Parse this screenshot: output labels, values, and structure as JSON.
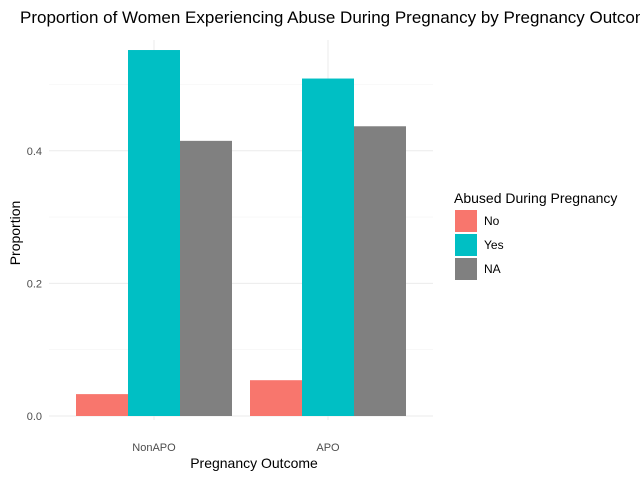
{
  "chart_data": {
    "type": "bar",
    "title": "Proportion of Women Experiencing Abuse During Pregnancy by Pregnancy Outcome",
    "xlabel": "Pregnancy Outcome",
    "ylabel": "Proportion",
    "categories": [
      "NonAPO",
      "APO"
    ],
    "series": [
      {
        "name": "No",
        "color": "#F8766D",
        "values": [
          0.033,
          0.054
        ]
      },
      {
        "name": "Yes",
        "color": "#00BFC4",
        "values": [
          0.552,
          0.509
        ]
      },
      {
        "name": "NA",
        "color": "#808080",
        "values": [
          0.415,
          0.437
        ]
      }
    ],
    "yticks": [
      0.0,
      0.2,
      0.4
    ],
    "ytick_labels": [
      "0.0",
      "0.2",
      "0.4"
    ],
    "ylim": [
      0,
      0.58
    ],
    "grid": true,
    "legend": {
      "title": "Abused During Pregnancy",
      "position": "right"
    }
  }
}
